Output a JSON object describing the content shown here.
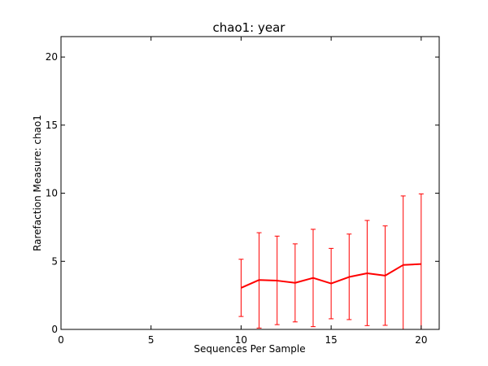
{
  "chart_data": {
    "type": "line",
    "title": "chao1: year",
    "xlabel": "Sequences Per Sample",
    "ylabel": "Rarefaction Measure: chao1",
    "xlim": [
      0,
      21
    ],
    "ylim": [
      0,
      21.5
    ],
    "xticks": [
      0,
      5,
      10,
      15,
      20
    ],
    "yticks": [
      0,
      5,
      10,
      15,
      20
    ],
    "grid": false,
    "legend": "none",
    "series": [
      {
        "color": "#ff0000",
        "x": [
          10,
          11,
          12,
          13,
          14,
          15,
          16,
          17,
          18,
          19,
          20
        ],
        "y": [
          3.05,
          3.63,
          3.58,
          3.42,
          3.78,
          3.37,
          3.85,
          4.12,
          3.95,
          4.73,
          4.8
        ],
        "err_low": [
          0.95,
          0.1,
          0.35,
          0.55,
          0.2,
          0.78,
          0.72,
          0.28,
          0.3,
          0.0,
          0.0
        ],
        "err_high": [
          5.15,
          7.1,
          6.85,
          6.28,
          7.35,
          5.95,
          7.0,
          8.0,
          7.6,
          9.8,
          9.95
        ]
      }
    ]
  }
}
